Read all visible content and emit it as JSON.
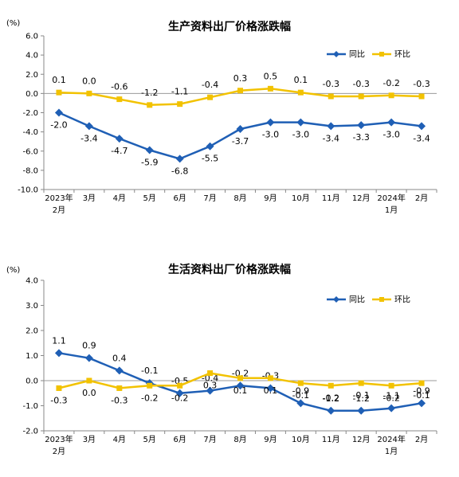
{
  "chart_data": [
    {
      "type": "line",
      "title": "生产资料出厂价格涨跌幅",
      "unit": "(%)",
      "ylim": [
        -10.0,
        6.0
      ],
      "yticks": [
        "6.0",
        "4.0",
        "2.0",
        "0.0",
        "-2.0",
        "-4.0",
        "-6.0",
        "-8.0",
        "-10.0"
      ],
      "categories": [
        "2023年|2月",
        "3月",
        "4月",
        "5月",
        "6月",
        "7月",
        "8月",
        "9月",
        "10月",
        "11月",
        "12月",
        "2024年|1月",
        "2月"
      ],
      "legend_position": "top-right",
      "series": [
        {
          "name": "同比",
          "color": "#1F5FB5",
          "marker": "diamond",
          "values": [
            -2.0,
            -3.4,
            -4.7,
            -5.9,
            -6.8,
            -5.5,
            -3.7,
            -3.0,
            -3.0,
            -3.4,
            -3.3,
            -3.0,
            -3.4
          ],
          "labels": [
            "-2.0",
            "-3.4",
            "-4.7",
            "-5.9",
            "-6.8",
            "-5.5",
            "-3.7",
            "-3.0",
            "-3.0",
            "-3.4",
            "-3.3",
            "-3.0",
            "-3.4"
          ]
        },
        {
          "name": "环比",
          "color": "#F2C200",
          "marker": "square",
          "values": [
            0.1,
            0.0,
            -0.6,
            -1.2,
            -1.1,
            -0.4,
            0.3,
            0.5,
            0.1,
            -0.3,
            -0.3,
            -0.2,
            -0.3
          ],
          "labels": [
            "0.1",
            "0.0",
            "-0.6",
            "-1.2",
            "-1.1",
            "-0.4",
            "0.3",
            "0.5",
            "0.1",
            "-0.3",
            "-0.3",
            "-0.2",
            "-0.3"
          ]
        }
      ]
    },
    {
      "type": "line",
      "title": "生活资料出厂价格涨跌幅",
      "unit": "(%)",
      "ylim": [
        -2.0,
        4.0
      ],
      "yticks": [
        "4.0",
        "3.0",
        "2.0",
        "1.0",
        "0.0",
        "-1.0",
        "-2.0"
      ],
      "categories": [
        "2023年|2月",
        "3月",
        "4月",
        "5月",
        "6月",
        "7月",
        "8月",
        "9月",
        "10月",
        "11月",
        "12月",
        "2024年|1月",
        "2月"
      ],
      "legend_position": "top-right",
      "series": [
        {
          "name": "同比",
          "color": "#1F5FB5",
          "marker": "diamond",
          "values": [
            1.1,
            0.9,
            0.4,
            -0.1,
            -0.5,
            -0.4,
            -0.2,
            -0.3,
            -0.9,
            -1.2,
            -1.2,
            -1.1,
            -0.9
          ],
          "labels": [
            "1.1",
            "0.9",
            "0.4",
            "-0.1",
            "-0.5",
            "-0.4",
            "-0.2",
            "-0.3",
            "-0.9",
            "-1.2",
            "-1.2",
            "-1.1",
            "-0.9"
          ]
        },
        {
          "name": "环比",
          "color": "#F2C200",
          "marker": "square",
          "values": [
            -0.3,
            0.0,
            -0.3,
            -0.2,
            -0.2,
            0.3,
            0.1,
            0.1,
            -0.1,
            -0.2,
            -0.1,
            -0.2,
            -0.1
          ],
          "labels": [
            "-0.3",
            "0.0",
            "-0.3",
            "-0.2",
            "-0.2",
            "0.3",
            "0.1",
            "0.1",
            "-0.1",
            "-0.2",
            "-0.1",
            "-0.2",
            "-0.1"
          ]
        }
      ]
    }
  ]
}
